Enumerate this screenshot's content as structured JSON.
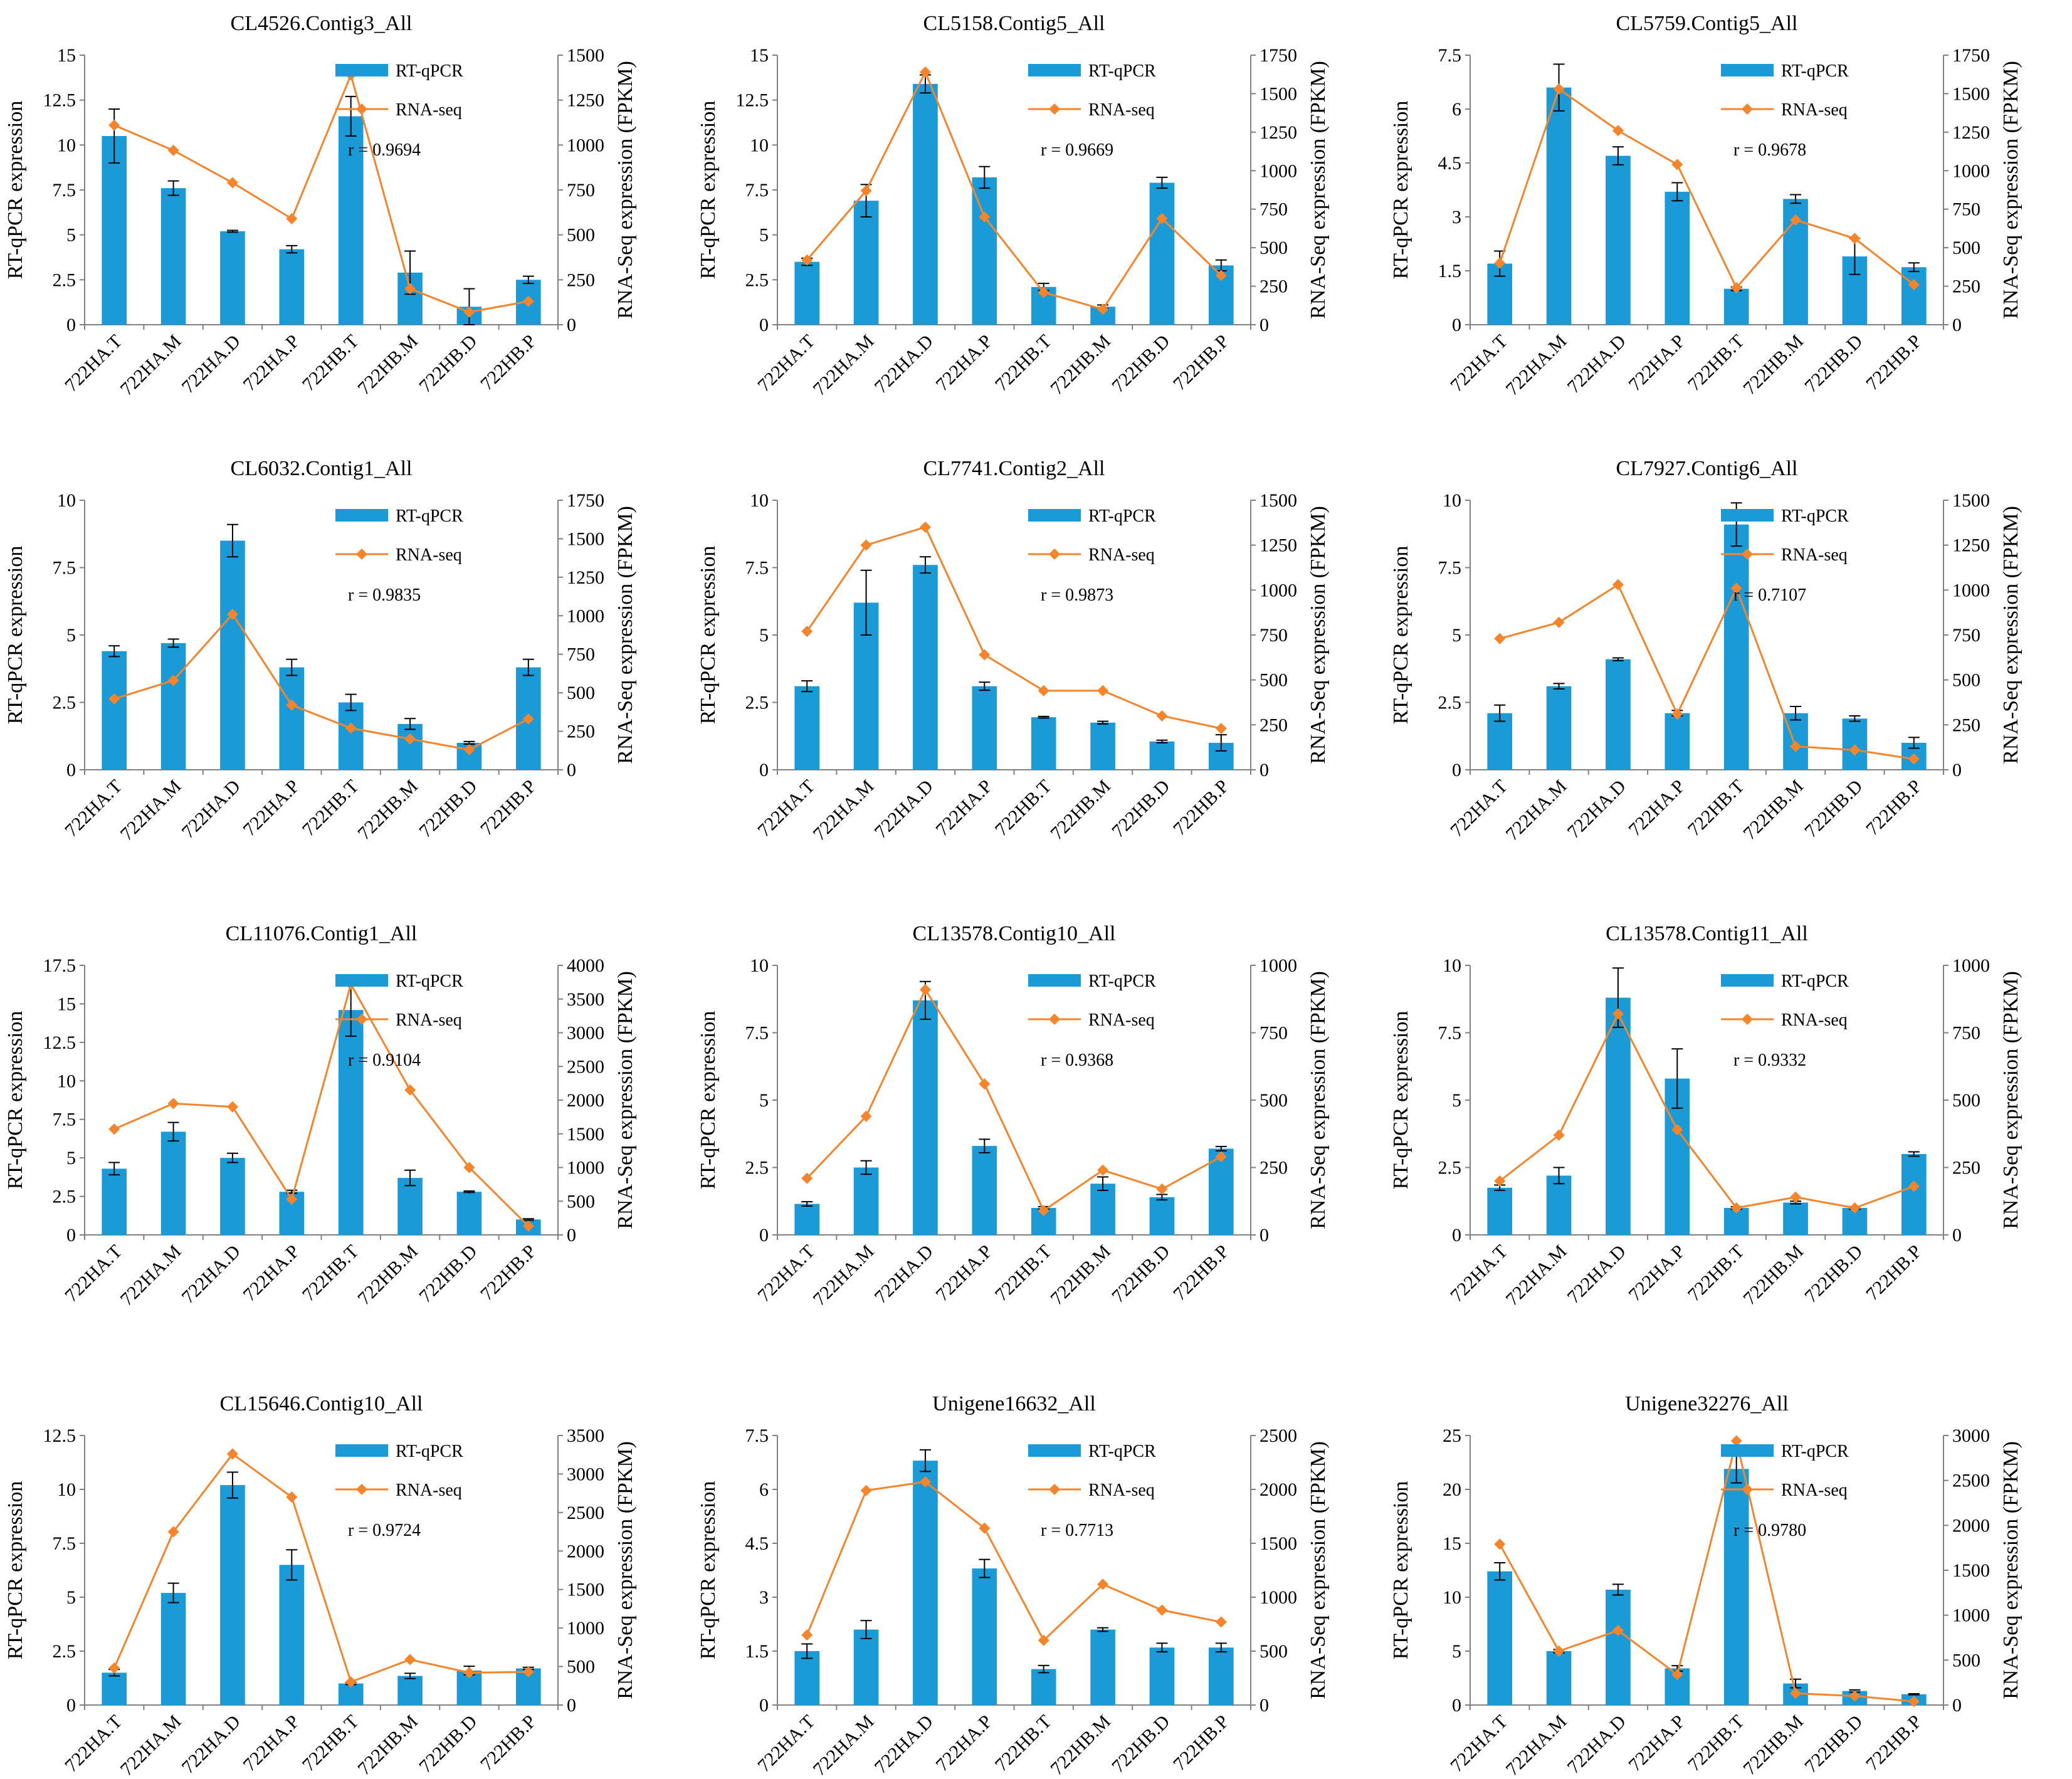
{
  "colors": {
    "bar": "#1a9bd7",
    "line": "#f5842a",
    "axis": "#808080",
    "error": "#000000"
  },
  "chart_data": [
    {
      "type": "bar",
      "title": "CL4526.Contig3_All",
      "categories": [
        "722HA.T",
        "722HA.M",
        "722HA.D",
        "722HA.P",
        "722HB.T",
        "722HB.M",
        "722HB.D",
        "722HB.P"
      ],
      "y_label": "RT-qPCR expression",
      "y2_label": "RNA-Seq expression (FPKM)",
      "ylim": [
        0,
        15
      ],
      "y_ticks": [
        "0",
        "2.5",
        "5",
        "7.5",
        "10",
        "12.5",
        "15"
      ],
      "y2lim": [
        0,
        1500
      ],
      "y2_ticks": [
        "0",
        "250",
        "500",
        "750",
        "1000",
        "1250",
        "1500"
      ],
      "legend": [
        "RT-qPCR",
        "RNA-seq"
      ],
      "annotation": "r = 0.9694",
      "series": [
        {
          "name": "RT-qPCR",
          "kind": "bar",
          "axis": "left",
          "values": [
            10.5,
            7.6,
            5.2,
            4.2,
            11.6,
            2.9,
            1.0,
            2.5
          ],
          "errors": [
            1.5,
            0.4,
            0.05,
            0.2,
            1.1,
            1.2,
            1.0,
            0.2
          ]
        },
        {
          "name": "RNA-seq",
          "kind": "line",
          "axis": "right",
          "values": [
            1110,
            970,
            790,
            590,
            1390,
            200,
            70,
            130
          ]
        }
      ]
    },
    {
      "type": "bar",
      "title": "CL5158.Contig5_All",
      "categories": [
        "722HA.T",
        "722HA.M",
        "722HA.D",
        "722HA.P",
        "722HB.T",
        "722HB.M",
        "722HB.D",
        "722HB.P"
      ],
      "y_label": "RT-qPCR expression",
      "y2_label": "RNA-Seq expression (FPKM)",
      "ylim": [
        0,
        15
      ],
      "y_ticks": [
        "0",
        "2.5",
        "5",
        "7.5",
        "10",
        "12.5",
        "15"
      ],
      "y2lim": [
        0,
        1750
      ],
      "y2_ticks": [
        "0",
        "250",
        "500",
        "750",
        "1000",
        "1250",
        "1500",
        "1750"
      ],
      "legend": [
        "RT-qPCR",
        "RNA-seq"
      ],
      "annotation": "r = 0.9669",
      "series": [
        {
          "name": "RT-qPCR",
          "kind": "bar",
          "axis": "left",
          "values": [
            3.5,
            6.9,
            13.4,
            8.2,
            2.1,
            1.0,
            7.9,
            3.3
          ],
          "errors": [
            0.2,
            0.9,
            0.5,
            0.6,
            0.2,
            0.1,
            0.3,
            0.3
          ]
        },
        {
          "name": "RNA-seq",
          "kind": "line",
          "axis": "right",
          "values": [
            420,
            870,
            1640,
            700,
            210,
            100,
            690,
            320
          ]
        }
      ]
    },
    {
      "type": "bar",
      "title": "CL5759.Contig5_All",
      "categories": [
        "722HA.T",
        "722HA.M",
        "722HA.D",
        "722HA.P",
        "722HB.T",
        "722HB.M",
        "722HB.D",
        "722HB.P"
      ],
      "y_label": "RT-qPCR expression",
      "y2_label": "RNA-Seq expression (FPKM)",
      "ylim": [
        0,
        7.5
      ],
      "y_ticks": [
        "0",
        "1.5",
        "3",
        "4.5",
        "6",
        "7.5"
      ],
      "y2lim": [
        0,
        1750
      ],
      "y2_ticks": [
        "0",
        "250",
        "500",
        "750",
        "1000",
        "1250",
        "1500",
        "1750"
      ],
      "legend": [
        "RT-qPCR",
        "RNA-seq"
      ],
      "annotation": "r = 0.9678",
      "series": [
        {
          "name": "RT-qPCR",
          "kind": "bar",
          "axis": "left",
          "values": [
            1.7,
            6.6,
            4.7,
            3.7,
            1.0,
            3.5,
            1.9,
            1.6
          ],
          "errors": [
            0.35,
            0.65,
            0.25,
            0.25,
            0.05,
            0.12,
            0.5,
            0.12
          ]
        },
        {
          "name": "RNA-seq",
          "kind": "line",
          "axis": "right",
          "values": [
            400,
            1530,
            1260,
            1040,
            240,
            680,
            560,
            260
          ]
        }
      ]
    },
    {
      "type": "bar",
      "title": "CL6032.Contig1_All",
      "categories": [
        "722HA.T",
        "722HA.M",
        "722HA.D",
        "722HA.P",
        "722HB.T",
        "722HB.M",
        "722HB.D",
        "722HB.P"
      ],
      "y_label": "RT-qPCR expression",
      "y2_label": "RNA-Seq expression (FPKM)",
      "ylim": [
        0,
        10
      ],
      "y_ticks": [
        "0",
        "2.5",
        "5",
        "7.5",
        "10"
      ],
      "y2lim": [
        0,
        1750
      ],
      "y2_ticks": [
        "0",
        "250",
        "500",
        "750",
        "1000",
        "1250",
        "1500",
        "1750"
      ],
      "legend": [
        "RT-qPCR",
        "RNA-seq"
      ],
      "annotation": "r = 0.9835",
      "series": [
        {
          "name": "RT-qPCR",
          "kind": "bar",
          "axis": "left",
          "values": [
            4.4,
            4.7,
            8.5,
            3.8,
            2.5,
            1.7,
            1.0,
            3.8
          ],
          "errors": [
            0.2,
            0.15,
            0.6,
            0.3,
            0.3,
            0.2,
            0.05,
            0.3
          ]
        },
        {
          "name": "RNA-seq",
          "kind": "line",
          "axis": "right",
          "values": [
            460,
            580,
            1010,
            420,
            270,
            200,
            130,
            330
          ]
        }
      ]
    },
    {
      "type": "bar",
      "title": "CL7741.Contig2_All",
      "categories": [
        "722HA.T",
        "722HA.M",
        "722HA.D",
        "722HA.P",
        "722HB.T",
        "722HB.M",
        "722HB.D",
        "722HB.P"
      ],
      "y_label": "RT-qPCR expression",
      "y2_label": "RNA-Seq expression (FPKM)",
      "ylim": [
        0,
        10
      ],
      "y_ticks": [
        "0",
        "2.5",
        "5",
        "7.5",
        "10"
      ],
      "y2lim": [
        0,
        1500
      ],
      "y2_ticks": [
        "0",
        "250",
        "500",
        "750",
        "1000",
        "1250",
        "1500"
      ],
      "legend": [
        "RT-qPCR",
        "RNA-seq"
      ],
      "annotation": "r = 0.9873",
      "series": [
        {
          "name": "RT-qPCR",
          "kind": "bar",
          "axis": "left",
          "values": [
            3.1,
            6.2,
            7.6,
            3.1,
            1.95,
            1.75,
            1.05,
            1.0
          ],
          "errors": [
            0.2,
            1.2,
            0.3,
            0.15,
            0.03,
            0.05,
            0.05,
            0.3
          ]
        },
        {
          "name": "RNA-seq",
          "kind": "line",
          "axis": "right",
          "values": [
            770,
            1250,
            1350,
            640,
            440,
            440,
            300,
            230
          ]
        }
      ]
    },
    {
      "type": "bar",
      "title": "CL7927.Contig6_All",
      "categories": [
        "722HA.T",
        "722HA.M",
        "722HA.D",
        "722HA.P",
        "722HB.T",
        "722HB.M",
        "722HB.D",
        "722HB.P"
      ],
      "y_label": "RT-qPCR expression",
      "y2_label": "RNA-Seq expression (FPKM)",
      "ylim": [
        0,
        10
      ],
      "y_ticks": [
        "0",
        "2.5",
        "5",
        "7.5",
        "10"
      ],
      "y2lim": [
        0,
        1500
      ],
      "y2_ticks": [
        "0",
        "250",
        "500",
        "750",
        "1000",
        "1250",
        "1500"
      ],
      "legend": [
        "RT-qPCR",
        "RNA-seq"
      ],
      "annotation": "r = 0.7107",
      "series": [
        {
          "name": "RT-qPCR",
          "kind": "bar",
          "axis": "left",
          "values": [
            2.1,
            3.1,
            4.1,
            2.1,
            9.1,
            2.1,
            1.9,
            1.0
          ],
          "errors": [
            0.3,
            0.1,
            0.05,
            0.1,
            0.8,
            0.25,
            0.1,
            0.2
          ]
        },
        {
          "name": "RNA-seq",
          "kind": "line",
          "axis": "right",
          "values": [
            730,
            820,
            1030,
            310,
            1010,
            130,
            110,
            60
          ]
        }
      ]
    },
    {
      "type": "bar",
      "title": "CL11076.Contig1_All",
      "categories": [
        "722HA.T",
        "722HA.M",
        "722HA.D",
        "722HA.P",
        "722HB.T",
        "722HB.M",
        "722HB.D",
        "722HB.P"
      ],
      "y_label": "RT-qPCR expression",
      "y2_label": "RNA-Seq expression (FPKM)",
      "ylim": [
        0,
        17.5
      ],
      "y_ticks": [
        "0",
        "2.5",
        "5",
        "7.5",
        "10",
        "12.5",
        "15",
        "17.5"
      ],
      "y2lim": [
        0,
        4000
      ],
      "y2_ticks": [
        "0",
        "500",
        "1000",
        "1500",
        "2000",
        "2500",
        "3000",
        "3500",
        "4000"
      ],
      "legend": [
        "RT-qPCR",
        "RNA-seq"
      ],
      "annotation": "r = 0.9104",
      "series": [
        {
          "name": "RT-qPCR",
          "kind": "bar",
          "axis": "left",
          "values": [
            4.3,
            6.7,
            5.0,
            2.8,
            14.6,
            3.7,
            2.8,
            1.0
          ],
          "errors": [
            0.4,
            0.6,
            0.3,
            0.1,
            1.7,
            0.5,
            0.05,
            0.05
          ]
        },
        {
          "name": "RNA-seq",
          "kind": "line",
          "axis": "right",
          "values": [
            1570,
            1950,
            1900,
            530,
            3720,
            2150,
            1000,
            130
          ]
        }
      ]
    },
    {
      "type": "bar",
      "title": "CL13578.Contig10_All",
      "categories": [
        "722HA.T",
        "722HA.M",
        "722HA.D",
        "722HA.P",
        "722HB.T",
        "722HB.M",
        "722HB.D",
        "722HB.P"
      ],
      "y_label": "RT-qPCR expression",
      "y2_label": "RNA-Seq expression (FPKM)",
      "ylim": [
        0,
        10
      ],
      "y_ticks": [
        "0",
        "2.5",
        "5",
        "7.5",
        "10"
      ],
      "y2lim": [
        0,
        1000
      ],
      "y2_ticks": [
        "0",
        "250",
        "500",
        "750",
        "1000"
      ],
      "legend": [
        "RT-qPCR",
        "RNA-seq"
      ],
      "annotation": "r = 0.9368",
      "series": [
        {
          "name": "RT-qPCR",
          "kind": "bar",
          "axis": "left",
          "values": [
            1.15,
            2.5,
            8.7,
            3.3,
            1.0,
            1.9,
            1.4,
            3.2
          ],
          "errors": [
            0.08,
            0.25,
            0.7,
            0.25,
            0.05,
            0.25,
            0.1,
            0.08
          ]
        },
        {
          "name": "RNA-seq",
          "kind": "line",
          "axis": "right",
          "values": [
            210,
            440,
            910,
            560,
            90,
            240,
            170,
            290
          ]
        }
      ]
    },
    {
      "type": "bar",
      "title": "CL13578.Contig11_All",
      "categories": [
        "722HA.T",
        "722HA.M",
        "722HA.D",
        "722HA.P",
        "722HB.T",
        "722HB.M",
        "722HB.D",
        "722HB.P"
      ],
      "y_label": "RT-qPCR expression",
      "y2_label": "RNA-Seq expression (FPKM)",
      "ylim": [
        0,
        10
      ],
      "y_ticks": [
        "0",
        "2.5",
        "5",
        "7.5",
        "10"
      ],
      "y2lim": [
        0,
        1000
      ],
      "y2_ticks": [
        "0",
        "250",
        "500",
        "750",
        "1000"
      ],
      "legend": [
        "RT-qPCR",
        "RNA-seq"
      ],
      "annotation": "r = 0.9332",
      "series": [
        {
          "name": "RT-qPCR",
          "kind": "bar",
          "axis": "left",
          "values": [
            1.75,
            2.2,
            8.8,
            5.8,
            1.0,
            1.2,
            1.0,
            3.0
          ],
          "errors": [
            0.1,
            0.3,
            1.1,
            1.1,
            0.05,
            0.05,
            0.05,
            0.08
          ]
        },
        {
          "name": "RNA-seq",
          "kind": "line",
          "axis": "right",
          "values": [
            200,
            370,
            820,
            390,
            100,
            140,
            100,
            180
          ]
        }
      ]
    },
    {
      "type": "bar",
      "title": "CL15646.Contig10_All",
      "categories": [
        "722HA.T",
        "722HA.M",
        "722HA.D",
        "722HA.P",
        "722HB.T",
        "722HB.M",
        "722HB.D",
        "722HB.P"
      ],
      "y_label": "RT-qPCR expression",
      "y2_label": "RNA-Seq expression (FPKM)",
      "ylim": [
        0,
        12.5
      ],
      "y_ticks": [
        "0",
        "2.5",
        "5",
        "7.5",
        "10",
        "12.5"
      ],
      "y2lim": [
        0,
        3500
      ],
      "y2_ticks": [
        "0",
        "500",
        "1000",
        "1500",
        "2000",
        "2500",
        "3000",
        "3500"
      ],
      "legend": [
        "RT-qPCR",
        "RNA-seq"
      ],
      "annotation": "r = 0.9724",
      "series": [
        {
          "name": "RT-qPCR",
          "kind": "bar",
          "axis": "left",
          "values": [
            1.5,
            5.2,
            10.2,
            6.5,
            1.0,
            1.35,
            1.6,
            1.7
          ],
          "errors": [
            0.15,
            0.45,
            0.6,
            0.7,
            0.05,
            0.12,
            0.2,
            0.05
          ]
        },
        {
          "name": "RNA-seq",
          "kind": "line",
          "axis": "right",
          "values": [
            480,
            2250,
            3260,
            2700,
            300,
            590,
            420,
            430
          ]
        }
      ]
    },
    {
      "type": "bar",
      "title": "Unigene16632_All",
      "categories": [
        "722HA.T",
        "722HA.M",
        "722HA.D",
        "722HA.P",
        "722HB.T",
        "722HB.M",
        "722HB.D",
        "722HB.P"
      ],
      "y_label": "RT-qPCR expression",
      "y2_label": "RNA-Seq expression (FPKM)",
      "ylim": [
        0,
        7.5
      ],
      "y_ticks": [
        "0",
        "1.5",
        "3",
        "4.5",
        "6",
        "7.5"
      ],
      "y2lim": [
        0,
        2500
      ],
      "y2_ticks": [
        "0",
        "500",
        "1000",
        "1500",
        "2000",
        "2500"
      ],
      "legend": [
        "RT-qPCR",
        "RNA-seq"
      ],
      "annotation": "r = 0.7713",
      "series": [
        {
          "name": "RT-qPCR",
          "kind": "bar",
          "axis": "left",
          "values": [
            1.5,
            2.1,
            6.8,
            3.8,
            1.0,
            2.1,
            1.6,
            1.6
          ],
          "errors": [
            0.2,
            0.25,
            0.3,
            0.25,
            0.1,
            0.05,
            0.12,
            0.12
          ]
        },
        {
          "name": "RNA-seq",
          "kind": "line",
          "axis": "right",
          "values": [
            650,
            1990,
            2070,
            1640,
            600,
            1120,
            880,
            770
          ]
        }
      ]
    },
    {
      "type": "bar",
      "title": "Unigene32276_All",
      "categories": [
        "722HA.T",
        "722HA.M",
        "722HA.D",
        "722HA.P",
        "722HB.T",
        "722HB.M",
        "722HB.D",
        "722HB.P"
      ],
      "y_label": "RT-qPCR expression",
      "y2_label": "RNA-Seq expression (FPKM)",
      "ylim": [
        0,
        25
      ],
      "y_ticks": [
        "0",
        "5",
        "10",
        "15",
        "20",
        "25"
      ],
      "y2lim": [
        0,
        3000
      ],
      "y2_ticks": [
        "0",
        "500",
        "1000",
        "1500",
        "2000",
        "2500",
        "3000"
      ],
      "legend": [
        "RT-qPCR",
        "RNA-seq"
      ],
      "annotation": "r = 0.9780",
      "series": [
        {
          "name": "RT-qPCR",
          "kind": "bar",
          "axis": "left",
          "values": [
            12.4,
            5.0,
            10.7,
            3.4,
            21.9,
            2.0,
            1.3,
            1.0
          ],
          "errors": [
            0.8,
            0.15,
            0.5,
            0.25,
            1.3,
            0.4,
            0.1,
            0.05
          ]
        },
        {
          "name": "RNA-seq",
          "kind": "line",
          "axis": "right",
          "values": [
            1790,
            600,
            830,
            340,
            2940,
            130,
            100,
            40
          ]
        }
      ]
    }
  ]
}
